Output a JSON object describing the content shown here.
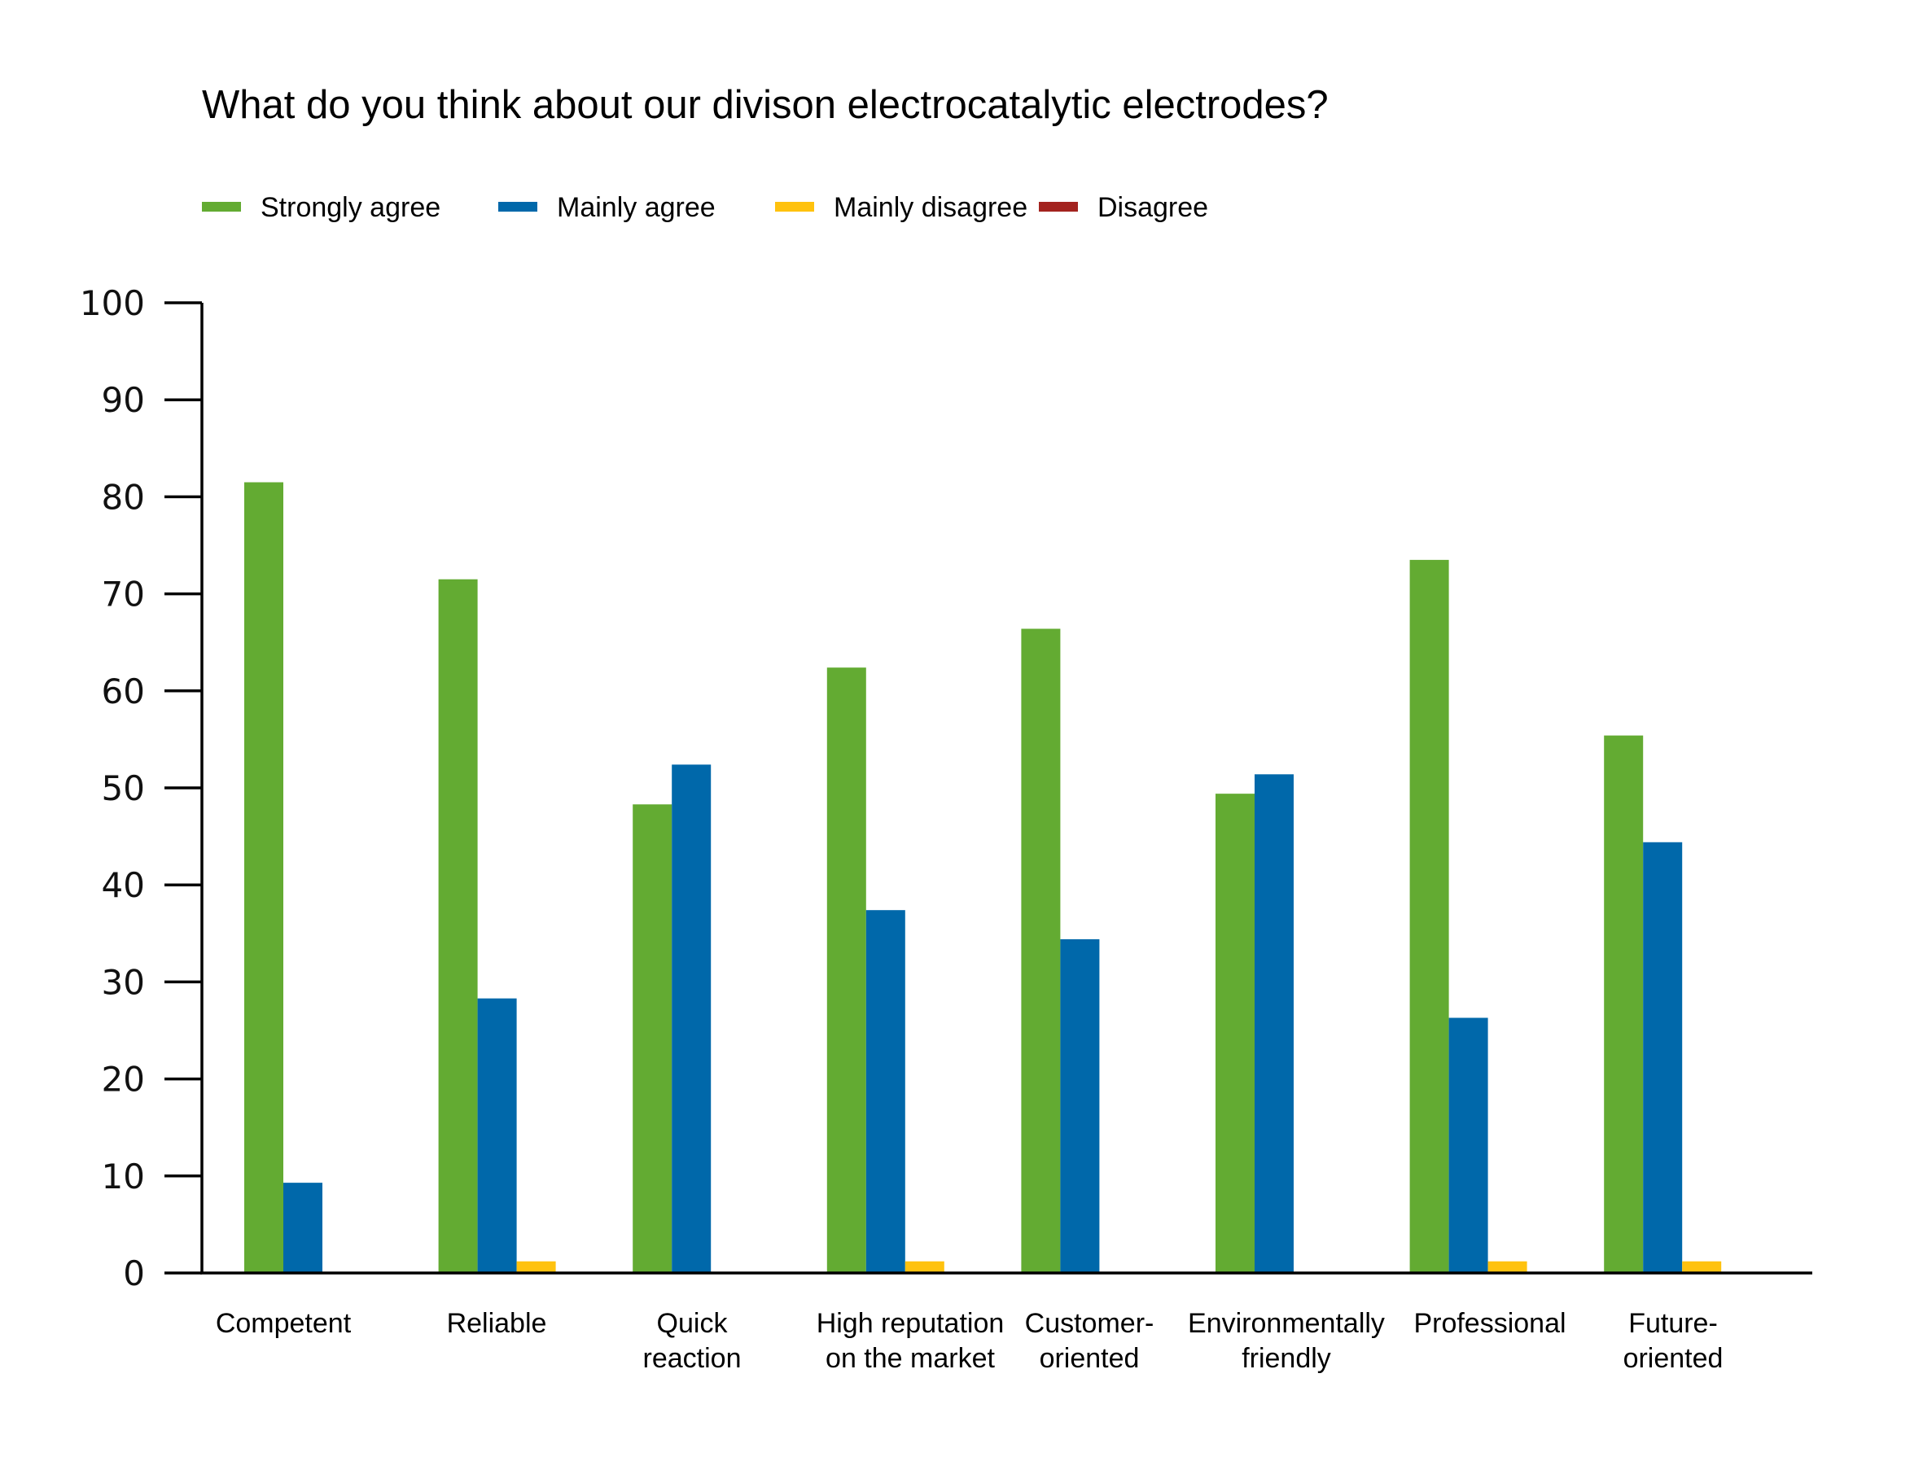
{
  "chart_data": {
    "type": "bar",
    "title": "What do you think about our divison electrocatalytic electrodes?",
    "xlabel": "",
    "ylabel": "",
    "ylim": [
      0,
      100
    ],
    "yticks": [
      0,
      10,
      20,
      30,
      40,
      50,
      60,
      70,
      80,
      90,
      100
    ],
    "grid": false,
    "legend_position": "top-left",
    "categories": [
      [
        "Competent"
      ],
      [
        "Reliable"
      ],
      [
        "Quick",
        "reaction"
      ],
      [
        "High reputation",
        "on the market"
      ],
      [
        "Customer-",
        "oriented"
      ],
      [
        "Environmentally",
        "friendly"
      ],
      [
        "Professional"
      ],
      [
        "Future-",
        "oriented"
      ]
    ],
    "series": [
      {
        "name": "Strongly agree",
        "color": "#63ab32",
        "values": [
          81.5,
          71.5,
          48.3,
          62.4,
          66.4,
          49.4,
          73.5,
          55.4
        ]
      },
      {
        "name": "Mainly agree",
        "color": "#0068aa",
        "values": [
          9.3,
          28.3,
          52.4,
          37.4,
          34.4,
          51.4,
          26.3,
          44.4
        ]
      },
      {
        "name": "Mainly disagree",
        "color": "#ffc20e",
        "values": [
          0,
          1.2,
          0,
          1.2,
          0,
          0,
          1.2,
          1.2
        ]
      },
      {
        "name": "Disagree",
        "color": "#a3231f",
        "values": [
          0,
          0,
          0,
          0,
          0,
          0,
          0,
          0
        ]
      }
    ]
  }
}
